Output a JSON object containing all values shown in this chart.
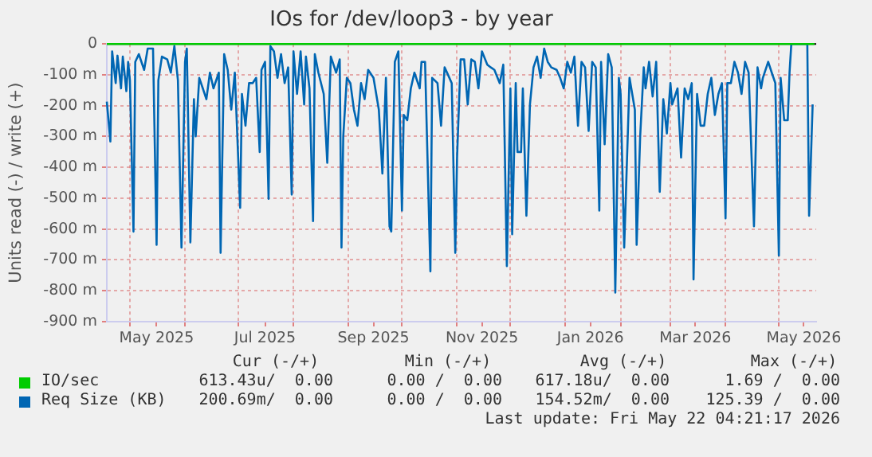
{
  "chart_data": {
    "type": "line",
    "title": "IOs for /dev/loop3 - by year",
    "ylabel": "Units read (-) / write (+)",
    "xlim": [
      "2025-04-18",
      "2026-05-22"
    ],
    "xticks": [
      {
        "value": "2025-05-01",
        "label": null
      },
      {
        "value": "2025-05-16",
        "label": "May 2025"
      },
      {
        "value": "2025-06-01",
        "label": null
      },
      {
        "value": "2025-07-01",
        "label": null
      },
      {
        "value": "2025-07-16",
        "label": "Jul 2025"
      },
      {
        "value": "2025-08-01",
        "label": null
      },
      {
        "value": "2025-09-01",
        "label": null
      },
      {
        "value": "2025-09-15",
        "label": "Sep 2025"
      },
      {
        "value": "2025-10-01",
        "label": null
      },
      {
        "value": "2025-11-01",
        "label": null
      },
      {
        "value": "2025-11-15",
        "label": "Nov 2025"
      },
      {
        "value": "2025-12-01",
        "label": null
      },
      {
        "value": "2026-01-01",
        "label": null
      },
      {
        "value": "2026-01-15",
        "label": "Jan 2026"
      },
      {
        "value": "2026-02-01",
        "label": null
      },
      {
        "value": "2026-03-01",
        "label": null
      },
      {
        "value": "2026-03-15",
        "label": "Mar 2026"
      },
      {
        "value": "2026-04-01",
        "label": null
      },
      {
        "value": "2026-05-01",
        "label": null
      },
      {
        "value": "2026-05-15",
        "label": "May 2026"
      }
    ],
    "ylim": [
      -900,
      0
    ],
    "yticks": [
      0,
      {
        "value": -100,
        "label": "-100 m"
      },
      {
        "value": -200,
        "label": "-200 m"
      },
      {
        "value": -300,
        "label": "-300 m"
      },
      {
        "value": -400,
        "label": "-400 m"
      },
      {
        "value": -500,
        "label": "-500 m"
      },
      {
        "value": -600,
        "label": "-600 m"
      },
      {
        "value": -700,
        "label": "-700 m"
      },
      {
        "value": -800,
        "label": "-800 m"
      },
      {
        "value": -900,
        "label": "-900 m"
      }
    ],
    "grid": true,
    "legend": "bottom",
    "ref_lines": [
      {
        "axis": "y",
        "value": 0,
        "color": "#000000"
      }
    ],
    "series": [
      {
        "name": "IO/sec",
        "color": "#00cc00",
        "x": [
          "2025-04-18",
          "2026-05-21"
        ],
        "values": [
          0,
          0
        ]
      },
      {
        "name": "Req Size (KB)",
        "color": "#0066b3",
        "x": [
          "2025-04-18",
          "2025-04-20",
          "2025-04-21",
          "2025-04-23",
          "2025-04-24",
          "2025-04-26",
          "2025-04-27",
          "2025-04-29",
          "2025-04-30",
          "2025-05-01",
          "2025-05-03",
          "2025-05-04",
          "2025-05-06",
          "2025-05-09",
          "2025-05-11",
          "2025-05-14",
          "2025-05-16",
          "2025-05-17",
          "2025-05-19",
          "2025-05-22",
          "2025-05-24",
          "2025-05-26",
          "2025-05-28",
          "2025-05-30",
          "2025-06-01",
          "2025-06-02",
          "2025-06-04",
          "2025-06-06",
          "2025-06-07",
          "2025-06-09",
          "2025-06-11",
          "2025-06-13",
          "2025-06-15",
          "2025-06-17",
          "2025-06-20",
          "2025-06-21",
          "2025-06-23",
          "2025-06-25",
          "2025-06-27",
          "2025-06-29",
          "2025-07-02",
          "2025-07-03",
          "2025-07-05",
          "2025-07-07",
          "2025-07-09",
          "2025-07-11",
          "2025-07-13",
          "2025-07-14",
          "2025-07-16",
          "2025-07-18",
          "2025-07-19",
          "2025-07-21",
          "2025-07-23",
          "2025-07-25",
          "2025-07-27",
          "2025-07-29",
          "2025-07-31",
          "2025-08-01",
          "2025-08-03",
          "2025-08-05",
          "2025-08-07",
          "2025-08-08",
          "2025-08-10",
          "2025-08-12",
          "2025-08-13",
          "2025-08-15",
          "2025-08-18",
          "2025-08-20",
          "2025-08-22",
          "2025-08-25",
          "2025-08-27",
          "2025-08-28",
          "2025-08-29",
          "2025-08-31",
          "2025-09-02",
          "2025-09-04",
          "2025-09-06",
          "2025-09-08",
          "2025-09-10",
          "2025-09-12",
          "2025-09-15",
          "2025-09-18",
          "2025-09-20",
          "2025-09-22",
          "2025-09-24",
          "2025-09-25",
          "2025-09-27",
          "2025-09-29",
          "2025-10-01",
          "2025-10-02",
          "2025-10-04",
          "2025-10-06",
          "2025-10-08",
          "2025-10-11",
          "2025-10-12",
          "2025-10-14",
          "2025-10-17",
          "2025-10-18",
          "2025-10-21",
          "2025-10-23",
          "2025-10-25",
          "2025-10-27",
          "2025-10-29",
          "2025-10-31",
          "2025-11-01",
          "2025-11-03",
          "2025-11-05",
          "2025-11-07",
          "2025-11-09",
          "2025-11-11",
          "2025-11-13",
          "2025-11-15",
          "2025-11-18",
          "2025-11-20",
          "2025-11-22",
          "2025-11-25",
          "2025-11-27",
          "2025-11-29",
          "2025-12-01",
          "2025-12-02",
          "2025-12-04",
          "2025-12-05",
          "2025-12-07",
          "2025-12-08",
          "2025-12-10",
          "2025-12-12",
          "2025-12-14",
          "2025-12-16",
          "2025-12-18",
          "2025-12-20",
          "2025-12-22",
          "2025-12-24",
          "2025-12-27",
          "2025-12-29",
          "2025-12-31",
          "2026-01-02",
          "2026-01-04",
          "2026-01-06",
          "2026-01-08",
          "2026-01-10",
          "2026-01-12",
          "2026-01-14",
          "2026-01-16",
          "2026-01-18",
          "2026-01-20",
          "2026-01-21",
          "2026-01-23",
          "2026-01-25",
          "2026-01-27",
          "2026-01-29",
          "2026-01-31",
          "2026-02-01",
          "2026-02-03",
          "2026-02-05",
          "2026-02-06",
          "2026-02-09",
          "2026-02-10",
          "2026-02-12",
          "2026-02-14",
          "2026-02-15",
          "2026-02-17",
          "2026-02-19",
          "2026-02-21",
          "2026-02-23",
          "2026-02-25",
          "2026-02-27",
          "2026-03-01",
          "2026-03-02",
          "2026-03-05",
          "2026-03-07",
          "2026-03-09",
          "2026-03-11",
          "2026-03-13",
          "2026-03-14",
          "2026-03-16",
          "2026-03-18",
          "2026-03-20",
          "2026-03-22",
          "2026-03-24",
          "2026-03-26",
          "2026-03-28",
          "2026-03-30",
          "2026-04-01",
          "2026-04-02",
          "2026-04-04",
          "2026-04-06",
          "2026-04-08",
          "2026-04-10",
          "2026-04-12",
          "2026-04-14",
          "2026-04-17",
          "2026-04-19",
          "2026-04-21",
          "2026-04-22",
          "2026-04-25",
          "2026-04-27",
          "2026-04-29",
          "2026-05-01",
          "2026-05-02",
          "2026-05-04",
          "2026-05-06",
          "2026-05-07",
          "2026-05-08",
          "2026-05-17",
          "2026-05-18",
          "2026-05-20"
        ],
        "values": [
          -187,
          -316,
          -24,
          -127,
          -38,
          -144,
          -41,
          -153,
          -58,
          -118,
          -608,
          -58,
          -33,
          -84,
          -15,
          -15,
          -651,
          -118,
          -41,
          -50,
          -93,
          -7,
          -118,
          -660,
          -58,
          -15,
          -643,
          -179,
          -299,
          -110,
          -144,
          -179,
          -93,
          -144,
          -93,
          -677,
          -33,
          -84,
          -213,
          -93,
          -531,
          -162,
          -265,
          -127,
          -127,
          -110,
          -350,
          -84,
          -58,
          -502,
          -7,
          -24,
          -110,
          -33,
          -127,
          -76,
          -488,
          -24,
          -162,
          -24,
          -196,
          -41,
          -144,
          -574,
          -33,
          -93,
          -162,
          -385,
          -41,
          -93,
          -50,
          -660,
          -299,
          -110,
          -127,
          -213,
          -265,
          -127,
          -179,
          -84,
          -110,
          -213,
          -420,
          -110,
          -591,
          -608,
          -58,
          -24,
          -540,
          -230,
          -247,
          -144,
          -93,
          -144,
          -58,
          -58,
          -737,
          -110,
          -127,
          -265,
          -76,
          -101,
          -127,
          -677,
          -368,
          -50,
          -50,
          -196,
          -50,
          -58,
          -144,
          -24,
          -67,
          -76,
          -84,
          -127,
          -67,
          -720,
          -144,
          -617,
          -127,
          -350,
          -350,
          -144,
          -557,
          -196,
          -76,
          -41,
          -110,
          -15,
          -58,
          -76,
          -84,
          -110,
          -144,
          -58,
          -93,
          -41,
          -265,
          -58,
          -76,
          -282,
          -58,
          -76,
          -540,
          -58,
          -325,
          -33,
          -76,
          -806,
          -110,
          -162,
          -660,
          -299,
          -110,
          -213,
          -651,
          -299,
          -76,
          -144,
          -58,
          -170,
          -58,
          -479,
          -179,
          -290,
          -127,
          -196,
          -144,
          -368,
          -144,
          -179,
          -127,
          -763,
          -162,
          -265,
          -265,
          -162,
          -110,
          -230,
          -162,
          -127,
          -565,
          -127,
          -127,
          -58,
          -93,
          -162,
          -58,
          -93,
          -591,
          -76,
          -144,
          -110,
          -58,
          -93,
          -127,
          -686,
          -110,
          -247,
          -247,
          -93,
          0,
          0,
          -557,
          -196
        ]
      }
    ],
    "annotations": [
      "Cur (-/+)",
      "Min (-/+)",
      "Avg (-/+)",
      "Max (-/+)",
      "613.43u/  0.00",
      "0.00 /  0.00",
      "617.18u/  0.00",
      "1.69 /  0.00",
      "200.69m/  0.00",
      "0.00 /  0.00",
      "154.52m/  0.00",
      "125.39 /  0.00",
      "Last update: Fri May 22 04:21:17 2026"
    ]
  }
}
